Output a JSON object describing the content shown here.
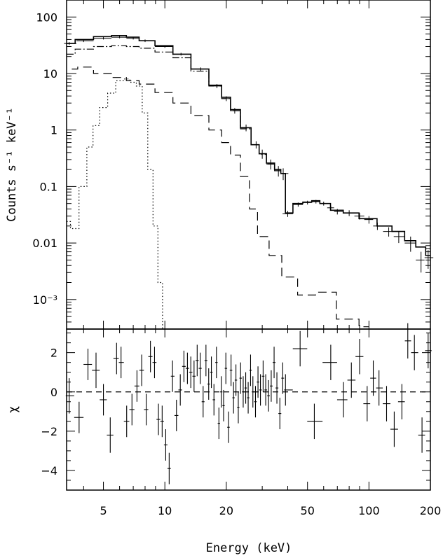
{
  "chart_data": [
    {
      "type": "line",
      "title": "",
      "xlabel": "",
      "ylabel": "Counts s⁻¹ keV⁻¹",
      "xscale": "log",
      "yscale": "log",
      "xlim": [
        3.3,
        200
      ],
      "ylim": [
        0.0003,
        200
      ],
      "xticks": [
        5,
        10,
        20,
        50,
        100,
        200
      ],
      "yticks": [
        {
          "value": 100,
          "label": "100"
        },
        {
          "value": 10,
          "label": "10"
        },
        {
          "value": 1,
          "label": "1"
        },
        {
          "value": 0.1,
          "label": "0.1"
        },
        {
          "value": 0.01,
          "label": "0.01"
        },
        {
          "value": 0.001,
          "label": "10⁻³"
        }
      ],
      "grid": false,
      "series": [
        {
          "style": "data-with-errors",
          "x": [
            3.4,
            4.0,
            5.0,
            6.0,
            7.0,
            8.0,
            10,
            12,
            15,
            18,
            20,
            22,
            25,
            28,
            30,
            33,
            36,
            38
          ],
          "y": [
            34,
            38,
            42,
            44,
            42,
            38,
            30,
            22,
            12,
            6,
            3.6,
            2.2,
            1.1,
            0.55,
            0.38,
            0.25,
            0.19,
            0.17
          ],
          "yerr": [
            2,
            2,
            2,
            2,
            2,
            2,
            1.5,
            1.2,
            0.8,
            0.5,
            0.35,
            0.25,
            0.15,
            0.08,
            0.07,
            0.05,
            0.04,
            0.04
          ]
        },
        {
          "style": "data-with-errors",
          "x": [
            40,
            45,
            50,
            55,
            60,
            65,
            70,
            80,
            90,
            100,
            110,
            125,
            140,
            160,
            180,
            195
          ],
          "y": [
            0.033,
            0.048,
            0.052,
            0.054,
            0.05,
            0.042,
            0.036,
            0.034,
            0.03,
            0.026,
            0.02,
            0.016,
            0.013,
            0.01,
            0.005,
            0.0055
          ],
          "yerr": [
            0.004,
            0.004,
            0.004,
            0.004,
            0.004,
            0.004,
            0.004,
            0.004,
            0.004,
            0.004,
            0.003,
            0.003,
            0.003,
            0.003,
            0.002,
            0.002
          ]
        },
        {
          "style": "solid",
          "x": [
            3.3,
            4.0,
            5.0,
            6.0,
            7.0,
            8.0,
            10,
            12,
            15,
            18,
            20,
            22,
            25,
            28,
            30,
            33,
            36,
            38,
            40,
            45,
            50,
            55,
            60,
            70,
            80,
            100,
            120,
            140,
            160,
            180,
            200
          ],
          "y": [
            34,
            40,
            45,
            47,
            44,
            38,
            31,
            22,
            12,
            6.2,
            3.8,
            2.3,
            1.1,
            0.55,
            0.38,
            0.26,
            0.2,
            0.17,
            0.034,
            0.05,
            0.053,
            0.056,
            0.05,
            0.038,
            0.034,
            0.027,
            0.02,
            0.016,
            0.011,
            0.0085,
            0.006
          ]
        },
        {
          "style": "dash-dot",
          "x": [
            3.3,
            4.0,
            5.0,
            6.0,
            7.0,
            8.0,
            10,
            12,
            15,
            18,
            20,
            22,
            25,
            28,
            30,
            33,
            36,
            38
          ],
          "y": [
            22,
            27,
            30,
            31,
            30,
            28,
            24,
            19,
            11,
            6,
            3.6,
            2.2,
            1.05,
            0.55,
            0.37,
            0.25,
            0.19,
            0.17
          ]
        },
        {
          "style": "dashed",
          "x": [
            3.5,
            4.0,
            5.0,
            6.0,
            7.0,
            8.0,
            10,
            12,
            15,
            18,
            20,
            22,
            25,
            27,
            30,
            35,
            40,
            50,
            60,
            80,
            100
          ],
          "y": [
            12,
            13,
            10,
            8.5,
            7.5,
            6.5,
            4.6,
            3,
            1.8,
            1,
            0.6,
            0.36,
            0.15,
            0.04,
            0.013,
            0.006,
            0.0025,
            0.0012,
            0.00135,
            0.00045,
            0.00033
          ]
        },
        {
          "style": "dotted",
          "x": [
            3.3,
            3.6,
            4.0,
            4.3,
            4.6,
            5.0,
            5.5,
            6.0,
            6.5,
            7.0,
            7.5,
            8.0,
            8.5,
            9.0,
            9.5,
            10.0
          ],
          "y": [
            0.024,
            0.018,
            0.1,
            0.5,
            1.2,
            2.5,
            4.5,
            7.5,
            8,
            7,
            6,
            2,
            0.2,
            0.02,
            0.002,
            0.0003
          ]
        }
      ]
    },
    {
      "type": "scatter",
      "title": "",
      "xlabel": "Energy (keV)",
      "ylabel": "χ",
      "xscale": "log",
      "xlim": [
        3.3,
        200
      ],
      "ylim": [
        -5,
        3.2
      ],
      "xticks": [
        5,
        10,
        20,
        50,
        100,
        200
      ],
      "yticks": [
        2,
        0,
        -2,
        -4
      ],
      "reference_line": 0,
      "grid": false,
      "points": {
        "x": [
          3.4,
          3.8,
          4.2,
          4.6,
          5.0,
          5.4,
          5.8,
          6.1,
          6.5,
          6.9,
          7.3,
          7.7,
          8.1,
          8.5,
          8.9,
          9.3,
          9.7,
          10.1,
          10.5,
          10.9,
          11.4,
          11.9,
          12.4,
          12.9,
          13.4,
          13.9,
          14.4,
          14.9,
          15.4,
          15.9,
          16.4,
          16.9,
          17.4,
          17.9,
          18.4,
          18.9,
          19.4,
          19.9,
          20.5,
          21.1,
          21.7,
          22.3,
          22.9,
          23.5,
          24.2,
          24.9,
          25.6,
          26.3,
          27.0,
          27.8,
          28.6,
          29.4,
          30.3,
          31.2,
          32.2,
          33.2,
          34.3,
          35.4,
          36.6,
          37.8,
          39,
          46,
          54,
          65,
          75,
          82,
          90,
          98,
          105,
          112,
          122,
          133,
          145,
          155,
          167,
          182,
          195
        ],
        "y": [
          -0.2,
          -1.3,
          1.4,
          1.1,
          -0.4,
          -2.2,
          1.7,
          1.5,
          -1.5,
          -0.9,
          0.3,
          1.1,
          -0.9,
          1.8,
          1.5,
          -1.4,
          -1.5,
          -2.7,
          -3.9,
          0.8,
          -1.2,
          0.1,
          1.3,
          1.2,
          1.0,
          0.8,
          1.6,
          1.2,
          -0.5,
          1.6,
          0.4,
          1.0,
          -0.4,
          1.5,
          -1.6,
          0.0,
          -0.7,
          1.2,
          -1.8,
          1.1,
          -0.3,
          0.6,
          -0.8,
          0.7,
          0.0,
          0.2,
          -0.3,
          1.1,
          0.0,
          -0.5,
          0.5,
          0.1,
          0.8,
          0.1,
          -0.2,
          0.3,
          1.5,
          0.2,
          -1.1,
          0.7,
          0.1,
          2.2,
          -1.5,
          1.5,
          -0.4,
          0.6,
          1.8,
          -0.6,
          0.7,
          0.2,
          -0.6,
          -1.9,
          -0.5,
          2.6,
          2.0,
          -2.2,
          2.1
        ],
        "yerr": [
          0.9,
          0.8,
          0.8,
          0.9,
          0.8,
          0.9,
          0.8,
          0.8,
          0.8,
          0.8,
          0.8,
          0.8,
          0.8,
          0.8,
          0.8,
          0.8,
          0.8,
          0.8,
          0.8,
          0.8,
          0.8,
          0.8,
          0.8,
          0.8,
          0.8,
          0.8,
          0.8,
          0.8,
          0.8,
          0.8,
          0.8,
          0.8,
          0.8,
          0.8,
          0.8,
          0.8,
          0.8,
          0.8,
          0.8,
          0.8,
          0.8,
          0.8,
          0.8,
          0.8,
          0.8,
          0.8,
          0.8,
          0.8,
          0.8,
          0.8,
          0.8,
          0.8,
          0.8,
          0.8,
          0.8,
          0.8,
          0.8,
          0.8,
          0.8,
          0.8,
          0.8,
          0.9,
          0.9,
          0.9,
          0.9,
          0.9,
          0.9,
          0.9,
          0.9,
          0.9,
          0.9,
          0.9,
          0.9,
          0.9,
          0.9,
          0.9,
          0.9
        ]
      }
    }
  ]
}
